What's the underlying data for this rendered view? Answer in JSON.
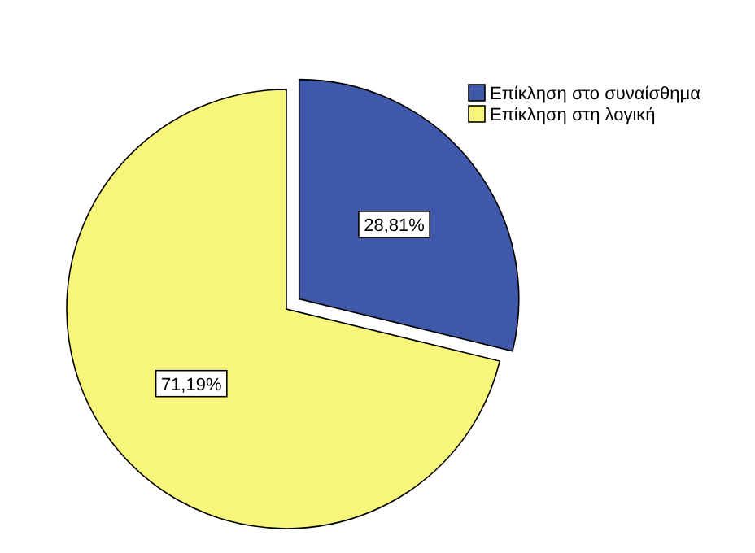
{
  "chart_data": {
    "type": "pie",
    "categories": [
      "Επίκληση στο συναίσθημα",
      "Επίκληση στη λογική"
    ],
    "values": [
      28.81,
      71.19
    ],
    "colors": [
      "#3f58a9",
      "#f8f57b"
    ],
    "value_labels": [
      "28,81%",
      "71,19%"
    ],
    "legend": "top right"
  }
}
